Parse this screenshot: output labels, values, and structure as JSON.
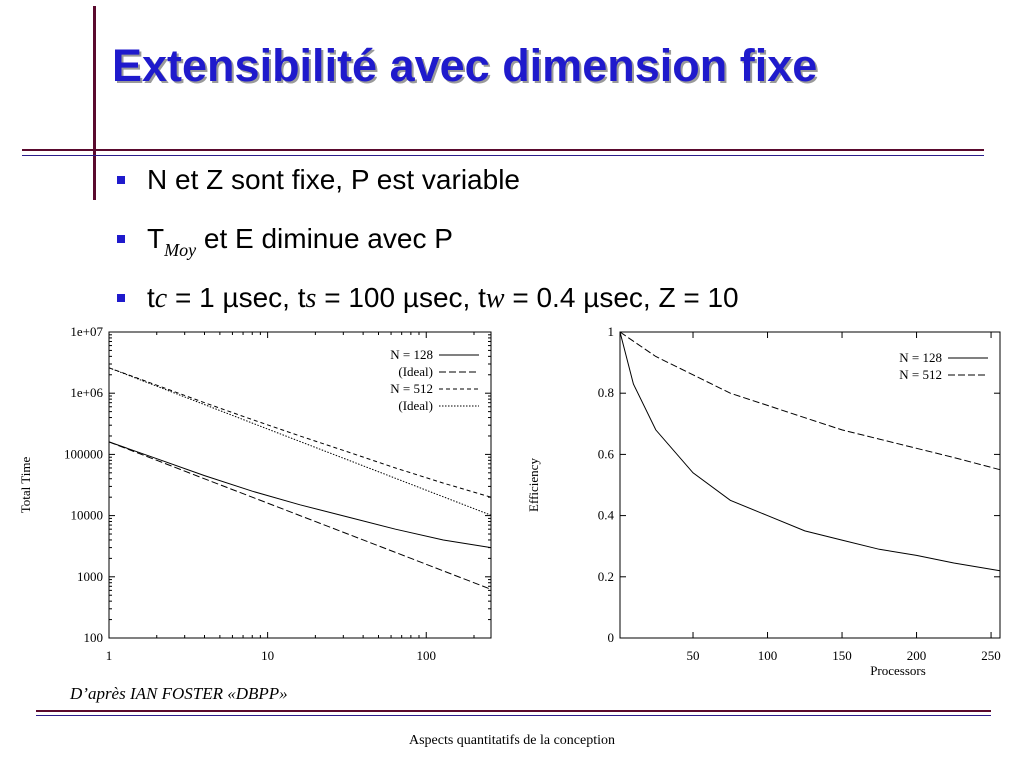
{
  "slide": {
    "title": "Extensibilité avec dimension fixe",
    "bullets": [
      {
        "text": "N et Z sont fixe, P est variable"
      },
      {
        "t": "T",
        "sub": "Moy",
        "rest": " et E diminue avec P"
      },
      {
        "p1": "t",
        "c": "c",
        "p2": " = 1 µsec, t",
        "s": "s",
        "p3": " = 100 µsec, t",
        "w": "w",
        "p4": " = 0.4 µsec, Z = 10"
      }
    ],
    "credit": "D’après IAN FOSTER «DBPP»",
    "footer": "Aspects quantitatifs de la conception"
  },
  "chart_data": [
    {
      "type": "line",
      "xscale": "log",
      "yscale": "log",
      "xlim": [
        1,
        256
      ],
      "ylim": [
        100,
        10000000
      ],
      "xticks": [
        "1",
        "10",
        "100"
      ],
      "yticks": [
        "100",
        "1000",
        "10000",
        "100000",
        "1e+06",
        "1e+07"
      ],
      "xlabel": "",
      "ylabel": "Total Time",
      "legend_position": "top-right",
      "series": [
        {
          "name": "N = 128",
          "style": "solid",
          "x": [
            1,
            2,
            4,
            8,
            16,
            32,
            64,
            128,
            256
          ],
          "y": [
            160000,
            85000,
            45000,
            25000,
            15000,
            9500,
            6000,
            4000,
            3000
          ]
        },
        {
          "name": "(Ideal)",
          "style": "dashed",
          "x": [
            1,
            2,
            4,
            8,
            16,
            32,
            64,
            128,
            256
          ],
          "y": [
            160000,
            80000,
            40000,
            20000,
            10000,
            5000,
            2500,
            1250,
            625
          ]
        },
        {
          "name": "N = 512",
          "style": "dashed-wide",
          "x": [
            1,
            2,
            4,
            8,
            16,
            32,
            64,
            128,
            256
          ],
          "y": [
            2600000,
            1350000,
            700000,
            370000,
            200000,
            110000,
            60000,
            34000,
            20000
          ]
        },
        {
          "name": "(Ideal)",
          "style": "dotted",
          "x": [
            1,
            2,
            4,
            8,
            16,
            32,
            64,
            128,
            256
          ],
          "y": [
            2600000,
            1300000,
            650000,
            325000,
            162500,
            81250,
            40625,
            20300,
            10150
          ]
        }
      ]
    },
    {
      "type": "line",
      "xlim": [
        1,
        256
      ],
      "ylim": [
        0,
        1
      ],
      "xticks": [
        "50",
        "100",
        "150",
        "200",
        "250"
      ],
      "yticks": [
        "0",
        "0.2",
        "0.4",
        "0.6",
        "0.8",
        "1"
      ],
      "xlabel": "Processors",
      "ylabel": "Efficiency",
      "legend_position": "top-right",
      "series": [
        {
          "name": "N = 128",
          "style": "solid",
          "x": [
            1,
            10,
            25,
            50,
            75,
            100,
            125,
            150,
            175,
            200,
            225,
            256
          ],
          "y": [
            1.0,
            0.83,
            0.68,
            0.54,
            0.45,
            0.4,
            0.35,
            0.32,
            0.29,
            0.27,
            0.245,
            0.22
          ]
        },
        {
          "name": "N = 512",
          "style": "dashed",
          "x": [
            1,
            10,
            25,
            50,
            75,
            100,
            125,
            150,
            175,
            200,
            225,
            256
          ],
          "y": [
            1.0,
            0.97,
            0.92,
            0.86,
            0.8,
            0.76,
            0.72,
            0.68,
            0.65,
            0.62,
            0.59,
            0.55
          ]
        }
      ]
    }
  ]
}
